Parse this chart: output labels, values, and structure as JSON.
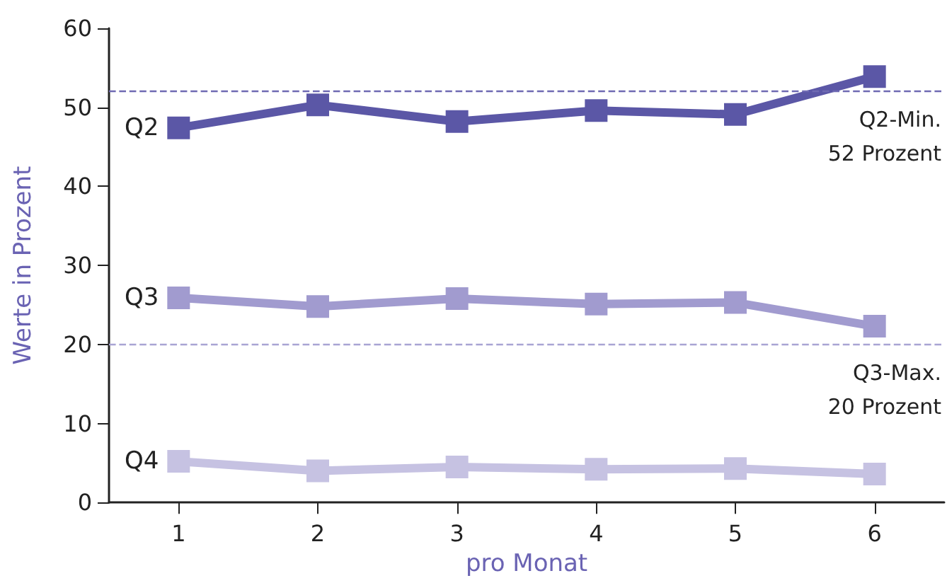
{
  "chart_data": {
    "type": "line",
    "xlabel": "pro Monat",
    "ylabel": "Werte in Prozent",
    "categories": [
      "1",
      "2",
      "3",
      "4",
      "5",
      "6"
    ],
    "series": [
      {
        "name": "Q2",
        "color": "#5b57a6",
        "values": [
          47.4,
          50.3,
          48.2,
          49.6,
          49.1,
          53.9
        ]
      },
      {
        "name": "Q3",
        "color": "#a19bcf",
        "values": [
          25.9,
          24.8,
          25.8,
          25.1,
          25.3,
          22.3
        ]
      },
      {
        "name": "Q4",
        "color": "#c6c2e2",
        "values": [
          5.2,
          4.0,
          4.5,
          4.2,
          4.3,
          3.6
        ]
      }
    ],
    "ylim": [
      0,
      60
    ],
    "yticks": [
      0,
      10,
      20,
      30,
      40,
      50,
      60
    ],
    "ref_lines": [
      {
        "axis": "y",
        "value": 52,
        "label": "Q2-Min.\n52 Prozent",
        "color": "#6f6ab3",
        "line_style": "dashed"
      },
      {
        "axis": "y",
        "value": 20,
        "label": "Q3-Max.\n20 Prozent",
        "color": "#a9a4d3",
        "line_style": "dashed"
      }
    ],
    "grid": false,
    "legend": false,
    "marker": "square",
    "line_style": "solid"
  }
}
